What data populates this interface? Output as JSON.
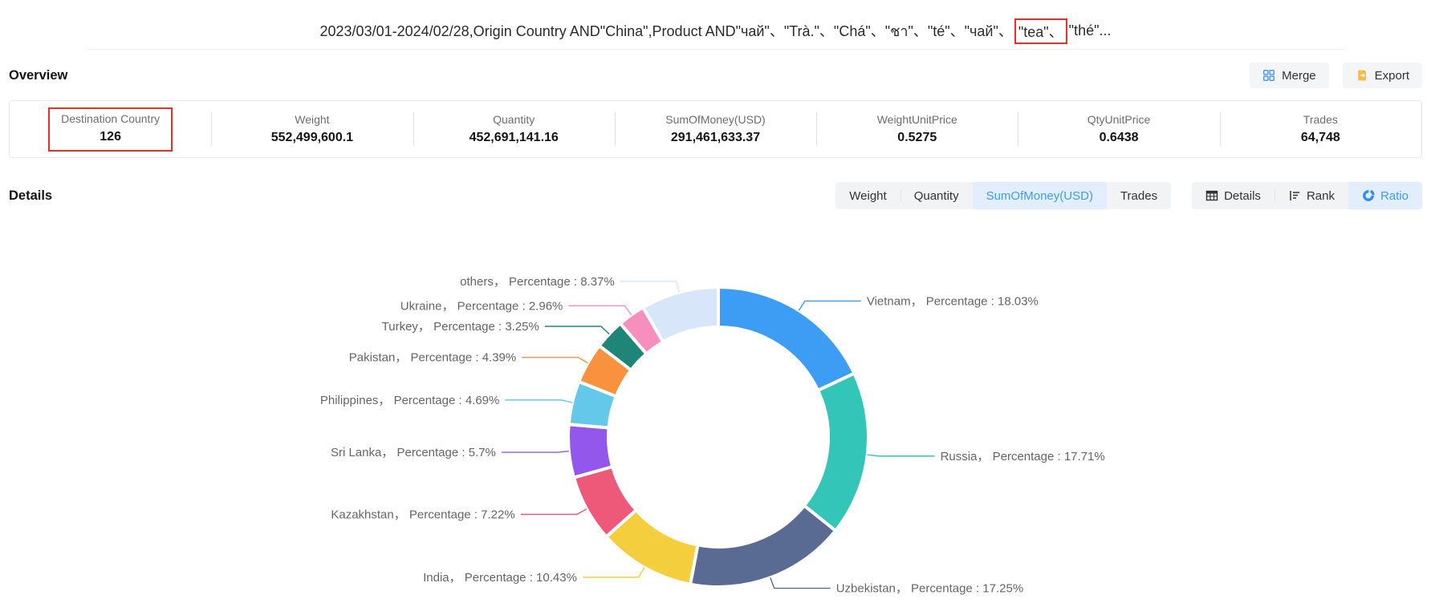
{
  "title": {
    "prefix": "2023/03/01-2024/02/28,Origin Country AND\"China\",Product AND\"чай\"、\"Trà.\"、\"Chá\"、\"ชา\"、\"té\"、\"чай\"、",
    "highlight": "\"tea\"、",
    "suffix": "\"thé\"..."
  },
  "overview": {
    "heading": "Overview",
    "merge_label": "Merge",
    "export_label": "Export",
    "stats": [
      {
        "label": "Destination Country",
        "value": "126",
        "highlighted": true
      },
      {
        "label": "Weight",
        "value": "552,499,600.1"
      },
      {
        "label": "Quantity",
        "value": "452,691,141.16"
      },
      {
        "label": "SumOfMoney(USD)",
        "value": "291,461,633.37"
      },
      {
        "label": "WeightUnitPrice",
        "value": "0.5275"
      },
      {
        "label": "QtyUnitPrice",
        "value": "0.6438"
      },
      {
        "label": "Trades",
        "value": "64,748"
      }
    ]
  },
  "details": {
    "heading": "Details",
    "metric_tabs": [
      {
        "label": "Weight",
        "active": false
      },
      {
        "label": "Quantity",
        "active": false
      },
      {
        "label": "SumOfMoney(USD)",
        "active": true
      },
      {
        "label": "Trades",
        "active": false
      }
    ],
    "view_tabs": [
      {
        "label": "Details",
        "icon": "table-icon",
        "active": false
      },
      {
        "label": "Rank",
        "icon": "rank-icon",
        "active": false
      },
      {
        "label": "Ratio",
        "icon": "pie-icon",
        "active": true
      }
    ]
  },
  "colors": {
    "accent_blue": "#3d9df5",
    "highlight_red": "#ed2f24",
    "button_bg": "#f4f5f7",
    "selected_tab_bg": "#e3eefc",
    "label_text": "#666666"
  },
  "chart_data": {
    "type": "pie",
    "subtype": "donut",
    "label_format": "{name}， Percentage : {value}%",
    "clockwise_from_top": true,
    "unit": "%",
    "slices": [
      {
        "name": "Vietnam",
        "value": 18.03,
        "color": "#3d9df5"
      },
      {
        "name": "Russia",
        "value": 17.71,
        "color": "#33c5b8"
      },
      {
        "name": "Uzbekistan",
        "value": 17.25,
        "color": "#5a6b93"
      },
      {
        "name": "India",
        "value": 10.43,
        "color": "#f5ce3e"
      },
      {
        "name": "Kazakhstan",
        "value": 7.22,
        "color": "#ee5879"
      },
      {
        "name": "Sri Lanka",
        "value": 5.7,
        "color": "#9457eb"
      },
      {
        "name": "Philippines",
        "value": 4.69,
        "color": "#63c8ea"
      },
      {
        "name": "Pakistan",
        "value": 4.39,
        "color": "#f9923e"
      },
      {
        "name": "Turkey",
        "value": 3.25,
        "color": "#1f8578"
      },
      {
        "name": "Ukraine",
        "value": 2.96,
        "color": "#f78fbe"
      },
      {
        "name": "others",
        "value": 8.37,
        "color": "#d7e6f8"
      }
    ]
  }
}
